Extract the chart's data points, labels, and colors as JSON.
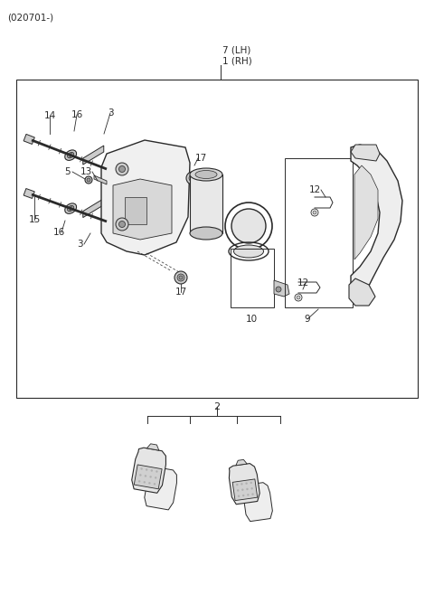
{
  "bg_color": "#ffffff",
  "lc": "#2a2a2a",
  "gray_fill": "#e8e8e8",
  "mid_gray": "#cccccc",
  "dark_gray": "#999999",
  "title_code": "(020701-)",
  "label_7": "7 (LH)",
  "label_1": "1 (RH)",
  "label_2": "2",
  "label_14": "14",
  "label_16a": "16",
  "label_3a": "3",
  "label_5": "5",
  "label_13": "13",
  "label_15": "15",
  "label_16b": "16",
  "label_3b": "3",
  "label_17a": "17",
  "label_17b": "17",
  "label_10": "10",
  "label_12a": "12",
  "label_12b": "12",
  "label_9": "9"
}
